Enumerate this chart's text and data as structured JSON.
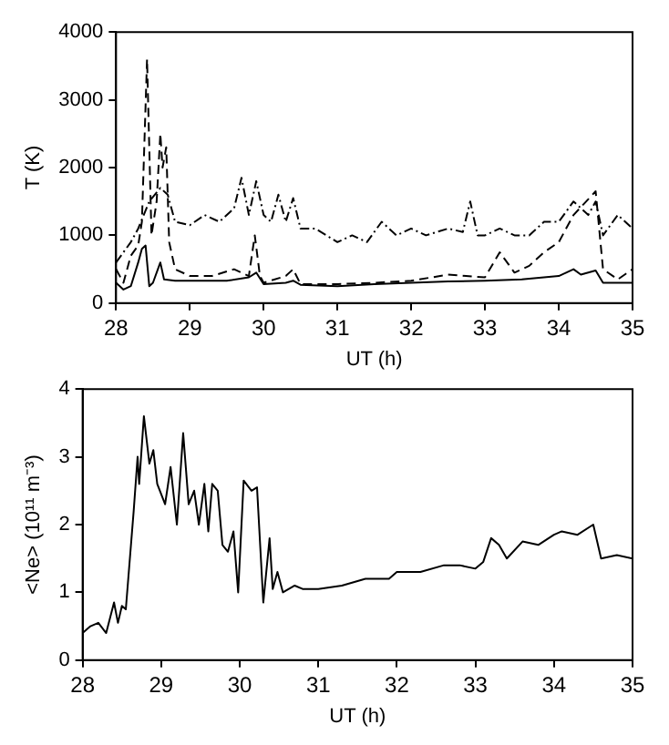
{
  "chart_data": [
    {
      "type": "line",
      "xlabel": "UT (h)",
      "ylabel": "T (K)",
      "xlim": [
        28,
        35
      ],
      "xticks": [
        28,
        29,
        30,
        31,
        32,
        33,
        34,
        35
      ],
      "ylim": [
        0,
        4000
      ],
      "yticks": [
        0,
        1000,
        2000,
        3000,
        4000
      ],
      "grid": false,
      "legend": false,
      "marker": "none",
      "series": [
        {
          "color": "#000000",
          "line_style": "solid",
          "x": [
            28,
            28.1,
            28.2,
            28.3,
            28.35,
            28.4,
            28.45,
            28.5,
            28.6,
            28.65,
            28.8,
            29,
            29.5,
            29.8,
            29.9,
            30,
            30.3,
            30.4,
            30.5,
            31,
            31.5,
            32,
            32.5,
            33,
            33.5,
            34,
            34.2,
            34.3,
            34.5,
            34.6,
            34.8,
            35
          ],
          "values": [
            300,
            200,
            250,
            600,
            800,
            850,
            250,
            300,
            600,
            350,
            330,
            330,
            330,
            380,
            450,
            280,
            300,
            330,
            270,
            250,
            280,
            300,
            320,
            330,
            350,
            400,
            500,
            420,
            480,
            300,
            300,
            300
          ]
        },
        {
          "color": "#000000",
          "line_style": "dashed",
          "x": [
            28,
            28.1,
            28.2,
            28.3,
            28.35,
            28.42,
            28.48,
            28.55,
            28.6,
            28.63,
            28.68,
            28.72,
            28.8,
            29,
            29.3,
            29.6,
            29.8,
            29.88,
            29.95,
            30,
            30.3,
            30.4,
            30.5,
            31,
            31.5,
            32,
            32.5,
            33,
            33.2,
            33.4,
            33.6,
            33.8,
            34,
            34.2,
            34.5,
            34.6,
            34.8,
            35
          ],
          "values": [
            500,
            300,
            700,
            850,
            1200,
            3600,
            1000,
            1500,
            2500,
            2000,
            2300,
            900,
            500,
            400,
            400,
            500,
            400,
            1000,
            400,
            300,
            400,
            500,
            280,
            280,
            300,
            330,
            420,
            380,
            750,
            450,
            550,
            750,
            900,
            1300,
            1650,
            500,
            350,
            500
          ]
        },
        {
          "color": "#000000",
          "line_style": "dashdot",
          "x": [
            28,
            28.2,
            28.3,
            28.45,
            28.6,
            28.7,
            28.8,
            29,
            29.2,
            29.4,
            29.6,
            29.7,
            29.8,
            29.9,
            30,
            30.1,
            30.2,
            30.3,
            30.4,
            30.5,
            30.7,
            31,
            31.2,
            31.4,
            31.6,
            31.8,
            32,
            32.2,
            32.5,
            32.7,
            32.8,
            32.9,
            33,
            33.2,
            33.4,
            33.6,
            33.8,
            34,
            34.2,
            34.4,
            34.5,
            34.6,
            34.8,
            35
          ],
          "values": [
            600,
            900,
            1100,
            1500,
            1700,
            1600,
            1200,
            1150,
            1300,
            1200,
            1400,
            1850,
            1300,
            1800,
            1300,
            1200,
            1600,
            1200,
            1550,
            1100,
            1100,
            900,
            1000,
            900,
            1200,
            1000,
            1100,
            1000,
            1100,
            1050,
            1500,
            1000,
            1000,
            1100,
            1000,
            1000,
            1200,
            1200,
            1500,
            1300,
            1500,
            1000,
            1300,
            1100
          ]
        }
      ]
    },
    {
      "type": "line",
      "xlabel": "UT (h)",
      "ylabel": "<Ne> (10¹¹ m⁻³)",
      "xlim": [
        28,
        35
      ],
      "xticks": [
        28,
        29,
        30,
        31,
        32,
        33,
        34,
        35
      ],
      "ylim": [
        0,
        4
      ],
      "yticks": [
        0,
        1,
        2,
        3,
        4
      ],
      "grid": false,
      "legend": false,
      "marker": "none",
      "series": [
        {
          "color": "#000000",
          "line_style": "solid",
          "x": [
            28,
            28.1,
            28.2,
            28.3,
            28.4,
            28.45,
            28.5,
            28.55,
            28.65,
            28.7,
            28.72,
            28.78,
            28.85,
            28.9,
            28.95,
            29.05,
            29.12,
            29.2,
            29.28,
            29.35,
            29.42,
            29.48,
            29.55,
            29.6,
            29.65,
            29.72,
            29.78,
            29.85,
            29.92,
            29.98,
            30.05,
            30.15,
            30.22,
            30.3,
            30.38,
            30.42,
            30.48,
            30.55,
            30.7,
            30.8,
            31,
            31.3,
            31.6,
            31.9,
            32,
            32.3,
            32.6,
            32.8,
            33,
            33.1,
            33.2,
            33.3,
            33.4,
            33.6,
            33.8,
            34,
            34.1,
            34.3,
            34.5,
            34.6,
            34.8,
            35
          ],
          "values": [
            0.4,
            0.5,
            0.55,
            0.4,
            0.85,
            0.55,
            0.8,
            0.75,
            2.2,
            3.0,
            2.6,
            3.6,
            2.9,
            3.1,
            2.6,
            2.3,
            2.85,
            2.0,
            3.35,
            2.3,
            2.5,
            2.0,
            2.6,
            1.9,
            2.6,
            2.5,
            1.7,
            1.6,
            1.9,
            1.0,
            2.65,
            2.5,
            2.55,
            0.85,
            1.8,
            1.05,
            1.3,
            1.0,
            1.1,
            1.05,
            1.05,
            1.1,
            1.2,
            1.2,
            1.3,
            1.3,
            1.4,
            1.4,
            1.35,
            1.45,
            1.8,
            1.7,
            1.5,
            1.75,
            1.7,
            1.85,
            1.9,
            1.85,
            2.0,
            1.5,
            1.55,
            1.5
          ]
        }
      ]
    }
  ]
}
